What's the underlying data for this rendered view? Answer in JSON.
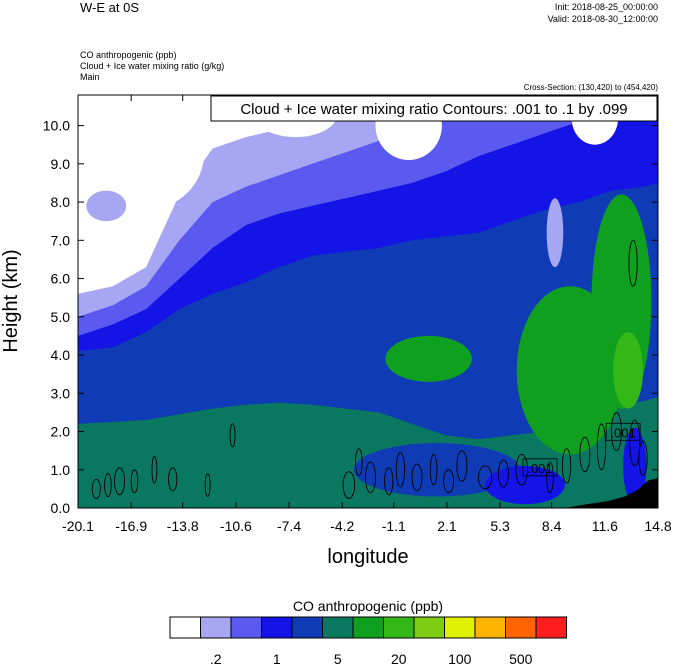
{
  "header": {
    "title": "W-E at 0S",
    "init": "Init: 2018-08-25_00:00:00",
    "valid": "Valid: 2018-08-30_12:00:00",
    "field_lines": [
      "CO anthropogenic   (ppb)",
      "Cloud + Ice water mixing ratio   (g/kg)",
      "Main"
    ],
    "cross_section": "Cross-Section: (130,420) to (454,420)"
  },
  "chart_data": {
    "type": "heatmap",
    "xlabel": "longitude",
    "ylabel": "Height (km)",
    "xlim": [
      -20.1,
      14.8
    ],
    "ylim": [
      0,
      10.8
    ],
    "x_ticks": [
      -20.1,
      -16.9,
      -13.8,
      -10.6,
      -7.4,
      -4.2,
      -1.1,
      2.1,
      5.3,
      8.4,
      11.6,
      14.8
    ],
    "x_tick_labels": [
      "-20.1",
      "-16.9",
      "-13.8",
      "-10.6",
      "-7.4",
      "-4.2",
      "-1.1",
      "2.1",
      "5.3",
      "8.4",
      "11.6",
      "14.8"
    ],
    "y_ticks": [
      0,
      1,
      2,
      3,
      4,
      5,
      6,
      7,
      8,
      9,
      10
    ],
    "y_tick_labels": [
      "0.0",
      "1.0",
      "2.0",
      "3.0",
      "4.0",
      "5.0",
      "6.0",
      "7.0",
      "8.0",
      "9.0",
      "10.0"
    ],
    "contour_legend": "Cloud + Ice water mixing ratio Contours: .001 to .1 by .099",
    "contour_labels": [
      {
        "text": ".001",
        "x": 7.7,
        "y": 1.05
      },
      {
        "text": ".001",
        "x": 12.7,
        "y": 1.98
      }
    ],
    "colorbar": {
      "title": "CO anthropogenic  (ppb)",
      "colors": [
        "#ffffff",
        "#a6a6f2",
        "#5a5af0",
        "#1414e6",
        "#0f3cb4",
        "#0a7860",
        "#10a020",
        "#34b818",
        "#7ecc14",
        "#e0f000",
        "#ffb400",
        "#ff6400",
        "#ff1e1e"
      ],
      "labels": [
        ".2",
        "1",
        "5",
        "20",
        "100",
        "500"
      ]
    },
    "level_colors": [
      "#ffffff",
      "#a6a6f2",
      "#5a5af0",
      "#1414e6",
      "#0f3cb4",
      "#0a7860",
      "#10a020",
      "#34b818"
    ],
    "boundaries": [
      {
        "level": 5,
        "points": [
          [
            -20.1,
            2.2
          ],
          [
            -18,
            2.25
          ],
          [
            -16,
            2.3
          ],
          [
            -14,
            2.45
          ],
          [
            -12,
            2.6
          ],
          [
            -10,
            2.7
          ],
          [
            -8,
            2.75
          ],
          [
            -6,
            2.7
          ],
          [
            -4,
            2.6
          ],
          [
            -2,
            2.5
          ],
          [
            0,
            2.2
          ],
          [
            2,
            1.9
          ],
          [
            4,
            1.8
          ],
          [
            6,
            1.9
          ],
          [
            8,
            2.0
          ],
          [
            10,
            2.3
          ],
          [
            12,
            2.6
          ],
          [
            14,
            2.8
          ],
          [
            14.8,
            2.9
          ]
        ]
      },
      {
        "level": 4,
        "points": [
          [
            -20.1,
            4.1
          ],
          [
            -18,
            4.2
          ],
          [
            -16,
            4.6
          ],
          [
            -14,
            5.2
          ],
          [
            -12,
            5.6
          ],
          [
            -10,
            5.9
          ],
          [
            -8,
            6.3
          ],
          [
            -6,
            6.6
          ],
          [
            -4,
            6.7
          ],
          [
            -2,
            6.8
          ],
          [
            0,
            7.0
          ],
          [
            2,
            7.1
          ],
          [
            4,
            7.2
          ],
          [
            6,
            7.5
          ],
          [
            8,
            7.8
          ],
          [
            10,
            8.0
          ],
          [
            12,
            8.3
          ],
          [
            14,
            8.4
          ],
          [
            14.8,
            8.5
          ]
        ]
      },
      {
        "level": 3,
        "points": [
          [
            -20.1,
            4.5
          ],
          [
            -18,
            4.8
          ],
          [
            -16,
            5.2
          ],
          [
            -14,
            6.0
          ],
          [
            -12,
            6.8
          ],
          [
            -10,
            7.4
          ],
          [
            -8,
            7.7
          ],
          [
            -6,
            7.9
          ],
          [
            -4,
            8.1
          ],
          [
            -2,
            8.3
          ],
          [
            0,
            8.5
          ],
          [
            2,
            8.8
          ],
          [
            4,
            9.2
          ],
          [
            6,
            9.5
          ],
          [
            8,
            9.8
          ],
          [
            10,
            10.1
          ],
          [
            12,
            10.3
          ],
          [
            14,
            10.5
          ],
          [
            14.8,
            10.6
          ]
        ]
      },
      {
        "level": 2,
        "points": [
          [
            -20.1,
            5.0
          ],
          [
            -18,
            5.3
          ],
          [
            -16,
            5.8
          ],
          [
            -14,
            7.0
          ],
          [
            -12,
            8.0
          ],
          [
            -10,
            8.4
          ],
          [
            -8,
            8.7
          ],
          [
            -6,
            9.0
          ],
          [
            -4,
            9.3
          ],
          [
            -2,
            9.6
          ],
          [
            0,
            9.9
          ],
          [
            2,
            10.2
          ],
          [
            4,
            10.5
          ],
          [
            6,
            10.7
          ],
          [
            8,
            10.8
          ],
          [
            10,
            10.8
          ],
          [
            12,
            10.8
          ],
          [
            14,
            10.8
          ],
          [
            14.8,
            10.8
          ]
        ]
      },
      {
        "level": 1,
        "points": [
          [
            -20.1,
            5.6
          ],
          [
            -18,
            5.8
          ],
          [
            -16,
            6.3
          ],
          [
            -14,
            8.2
          ],
          [
            -12,
            9.4
          ],
          [
            -10,
            9.7
          ],
          [
            -8,
            9.9
          ],
          [
            -6,
            10.2
          ],
          [
            -4,
            10.5
          ],
          [
            -2,
            10.7
          ],
          [
            0,
            10.8
          ],
          [
            2,
            10.8
          ],
          [
            4,
            10.8
          ],
          [
            6,
            10.8
          ],
          [
            8,
            10.8
          ],
          [
            10,
            10.8
          ],
          [
            12,
            10.8
          ],
          [
            14,
            10.8
          ],
          [
            14.8,
            10.8
          ]
        ]
      }
    ],
    "blobs": [
      {
        "level": 6,
        "cx": 9.5,
        "cy": 3.6,
        "rx": 3.2,
        "ry": 2.2
      },
      {
        "level": 6,
        "cx": 12.6,
        "cy": 5.4,
        "rx": 1.8,
        "ry": 2.8
      },
      {
        "level": 7,
        "cx": 13.0,
        "cy": 3.6,
        "rx": 0.9,
        "ry": 1.0
      },
      {
        "level": 6,
        "cx": 1.0,
        "cy": 3.9,
        "rx": 2.6,
        "ry": 0.6
      },
      {
        "level": 4,
        "cx": -3.2,
        "cy": 5.5,
        "rx": 1.2,
        "ry": 1.0
      },
      {
        "level": 4,
        "cx": 1.5,
        "cy": 1.0,
        "rx": 5.0,
        "ry": 0.7
      },
      {
        "level": 3,
        "cx": 6.8,
        "cy": 0.6,
        "rx": 2.4,
        "ry": 0.5
      },
      {
        "level": 3,
        "cx": 13.4,
        "cy": 1.1,
        "rx": 0.7,
        "ry": 1.0
      },
      {
        "level": 0,
        "cx": -16.0,
        "cy": 9.3,
        "rx": 3.5,
        "ry": 1.5
      },
      {
        "level": 0,
        "cx": -7.0,
        "cy": 10.3,
        "rx": 2.5,
        "ry": 0.6
      },
      {
        "level": 0,
        "cx": -0.2,
        "cy": 10.0,
        "rx": 2.0,
        "ry": 0.9
      },
      {
        "level": 0,
        "cx": 11.0,
        "cy": 10.2,
        "rx": 1.4,
        "ry": 0.7
      },
      {
        "level": 1,
        "cx": -18.4,
        "cy": 7.9,
        "rx": 1.2,
        "ry": 0.4
      },
      {
        "level": 1,
        "cx": 8.6,
        "cy": 7.2,
        "rx": 0.5,
        "ry": 0.9
      }
    ],
    "terrain": [
      [
        9.2,
        0
      ],
      [
        10.5,
        0.1
      ],
      [
        11.8,
        0.18
      ],
      [
        12.8,
        0.3
      ],
      [
        13.6,
        0.48
      ],
      [
        14.2,
        0.72
      ],
      [
        14.8,
        0.78
      ],
      [
        14.8,
        0
      ]
    ],
    "contour_blobs": [
      [
        -19.0,
        0.5,
        0.25,
        0.25
      ],
      [
        -18.3,
        0.6,
        0.2,
        0.3
      ],
      [
        -17.6,
        0.7,
        0.3,
        0.35
      ],
      [
        -16.7,
        0.7,
        0.2,
        0.3
      ],
      [
        -15.5,
        1.0,
        0.15,
        0.35
      ],
      [
        -14.4,
        0.75,
        0.25,
        0.3
      ],
      [
        -12.3,
        0.6,
        0.15,
        0.3
      ],
      [
        -10.8,
        1.9,
        0.15,
        0.3
      ],
      [
        -3.8,
        0.6,
        0.35,
        0.35
      ],
      [
        -3.2,
        1.2,
        0.2,
        0.35
      ],
      [
        -2.5,
        0.8,
        0.3,
        0.4
      ],
      [
        -1.4,
        0.7,
        0.25,
        0.35
      ],
      [
        -0.7,
        1.0,
        0.25,
        0.45
      ],
      [
        0.3,
        0.8,
        0.3,
        0.35
      ],
      [
        1.3,
        1.0,
        0.2,
        0.4
      ],
      [
        2.2,
        0.7,
        0.3,
        0.3
      ],
      [
        3.0,
        1.1,
        0.3,
        0.4
      ],
      [
        4.4,
        0.8,
        0.4,
        0.3
      ],
      [
        5.5,
        0.9,
        0.3,
        0.35
      ],
      [
        6.6,
        1.0,
        0.35,
        0.4
      ],
      [
        8.3,
        0.8,
        0.2,
        0.4
      ],
      [
        9.3,
        1.1,
        0.25,
        0.45
      ],
      [
        10.4,
        1.4,
        0.3,
        0.45
      ],
      [
        11.4,
        1.6,
        0.25,
        0.6
      ],
      [
        12.3,
        2.0,
        0.3,
        0.5
      ],
      [
        13.4,
        1.7,
        0.3,
        0.6
      ],
      [
        13.9,
        1.3,
        0.25,
        0.45
      ],
      [
        13.3,
        6.4,
        0.25,
        0.6
      ]
    ]
  }
}
